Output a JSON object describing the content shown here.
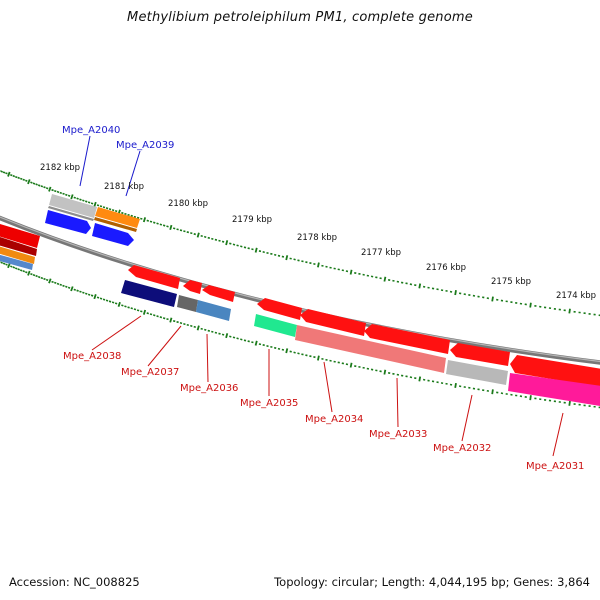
{
  "title": "Methylibium petroleiphilum PM1, complete genome",
  "footer": {
    "accession": "Accession: NC_008825",
    "summary": "Topology: circular; Length: 4,044,195 bp; Genes: 3,864"
  },
  "colors": {
    "backbone": "#7a7a7a",
    "tick": "#1a7a1a",
    "top_label": "#1a1acc",
    "bottom_label": "#cc1111"
  },
  "scale_labels": [
    "2182 kbp",
    "2181 kbp",
    "2180 kbp",
    "2179 kbp",
    "2178 kbp",
    "2177 kbp",
    "2176 kbp",
    "2175 kbp",
    "2174 kbp"
  ],
  "top_gene_labels": [
    "Mpe_A2040",
    "Mpe_A2039"
  ],
  "bottom_gene_labels": [
    "Mpe_A2038",
    "Mpe_A2037",
    "Mpe_A2036",
    "Mpe_A2035",
    "Mpe_A2034",
    "Mpe_A2033",
    "Mpe_A2032",
    "Mpe_A2031"
  ]
}
